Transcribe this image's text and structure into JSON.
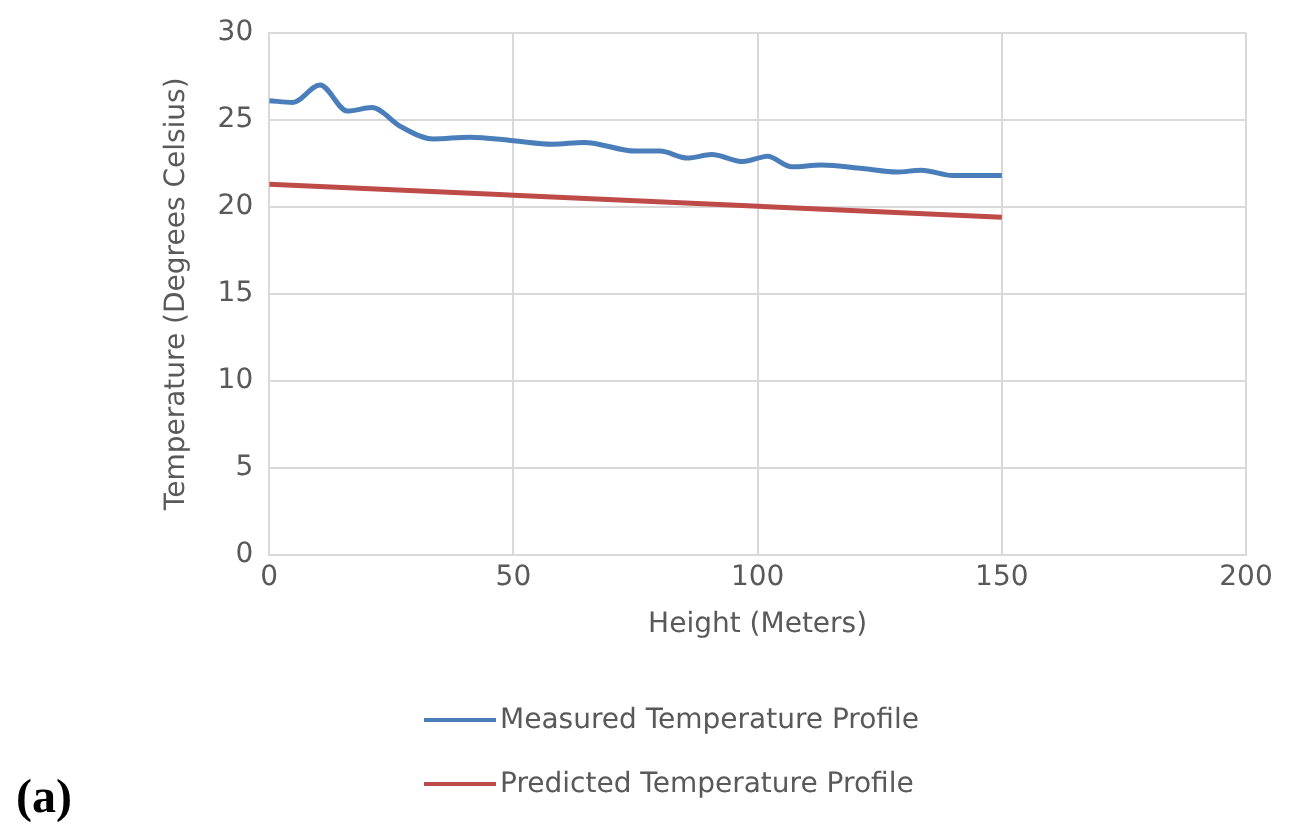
{
  "chart_data": {
    "type": "line",
    "xlabel": "Height (Meters)",
    "ylabel": "Temperature (Degrees Celsius)",
    "xlim": [
      0,
      200
    ],
    "xticks": [
      0,
      50,
      100,
      150,
      200
    ],
    "ylim": [
      0,
      30
    ],
    "yticks": [
      0,
      5,
      10,
      15,
      20,
      25,
      30
    ],
    "grid": true,
    "legend": "bottom",
    "marker": "none",
    "series": [
      {
        "name": "Measured Temperature Profile",
        "color": "#4a7ebb",
        "x": [
          0,
          4.8,
          10.4,
          16,
          21,
          27,
          33.6,
          41,
          50,
          58,
          64.5,
          75,
          80,
          85.6,
          90.6,
          97,
          102,
          107,
          113,
          121.5,
          128.5,
          133.5,
          140,
          150
        ],
        "values": [
          26.1,
          26.0,
          27.0,
          25.5,
          25.7,
          24.6,
          23.9,
          24.0,
          23.8,
          23.6,
          23.7,
          23.2,
          23.2,
          22.8,
          23.0,
          22.6,
          22.9,
          22.3,
          22.4,
          22.2,
          22.0,
          22.1,
          21.8,
          21.8
        ]
      },
      {
        "name": "Predicted Temperature Profile",
        "color": "#be4b48",
        "x": [
          0,
          150
        ],
        "values": [
          21.3,
          19.4
        ]
      }
    ],
    "annotations": [
      "(a)"
    ]
  }
}
